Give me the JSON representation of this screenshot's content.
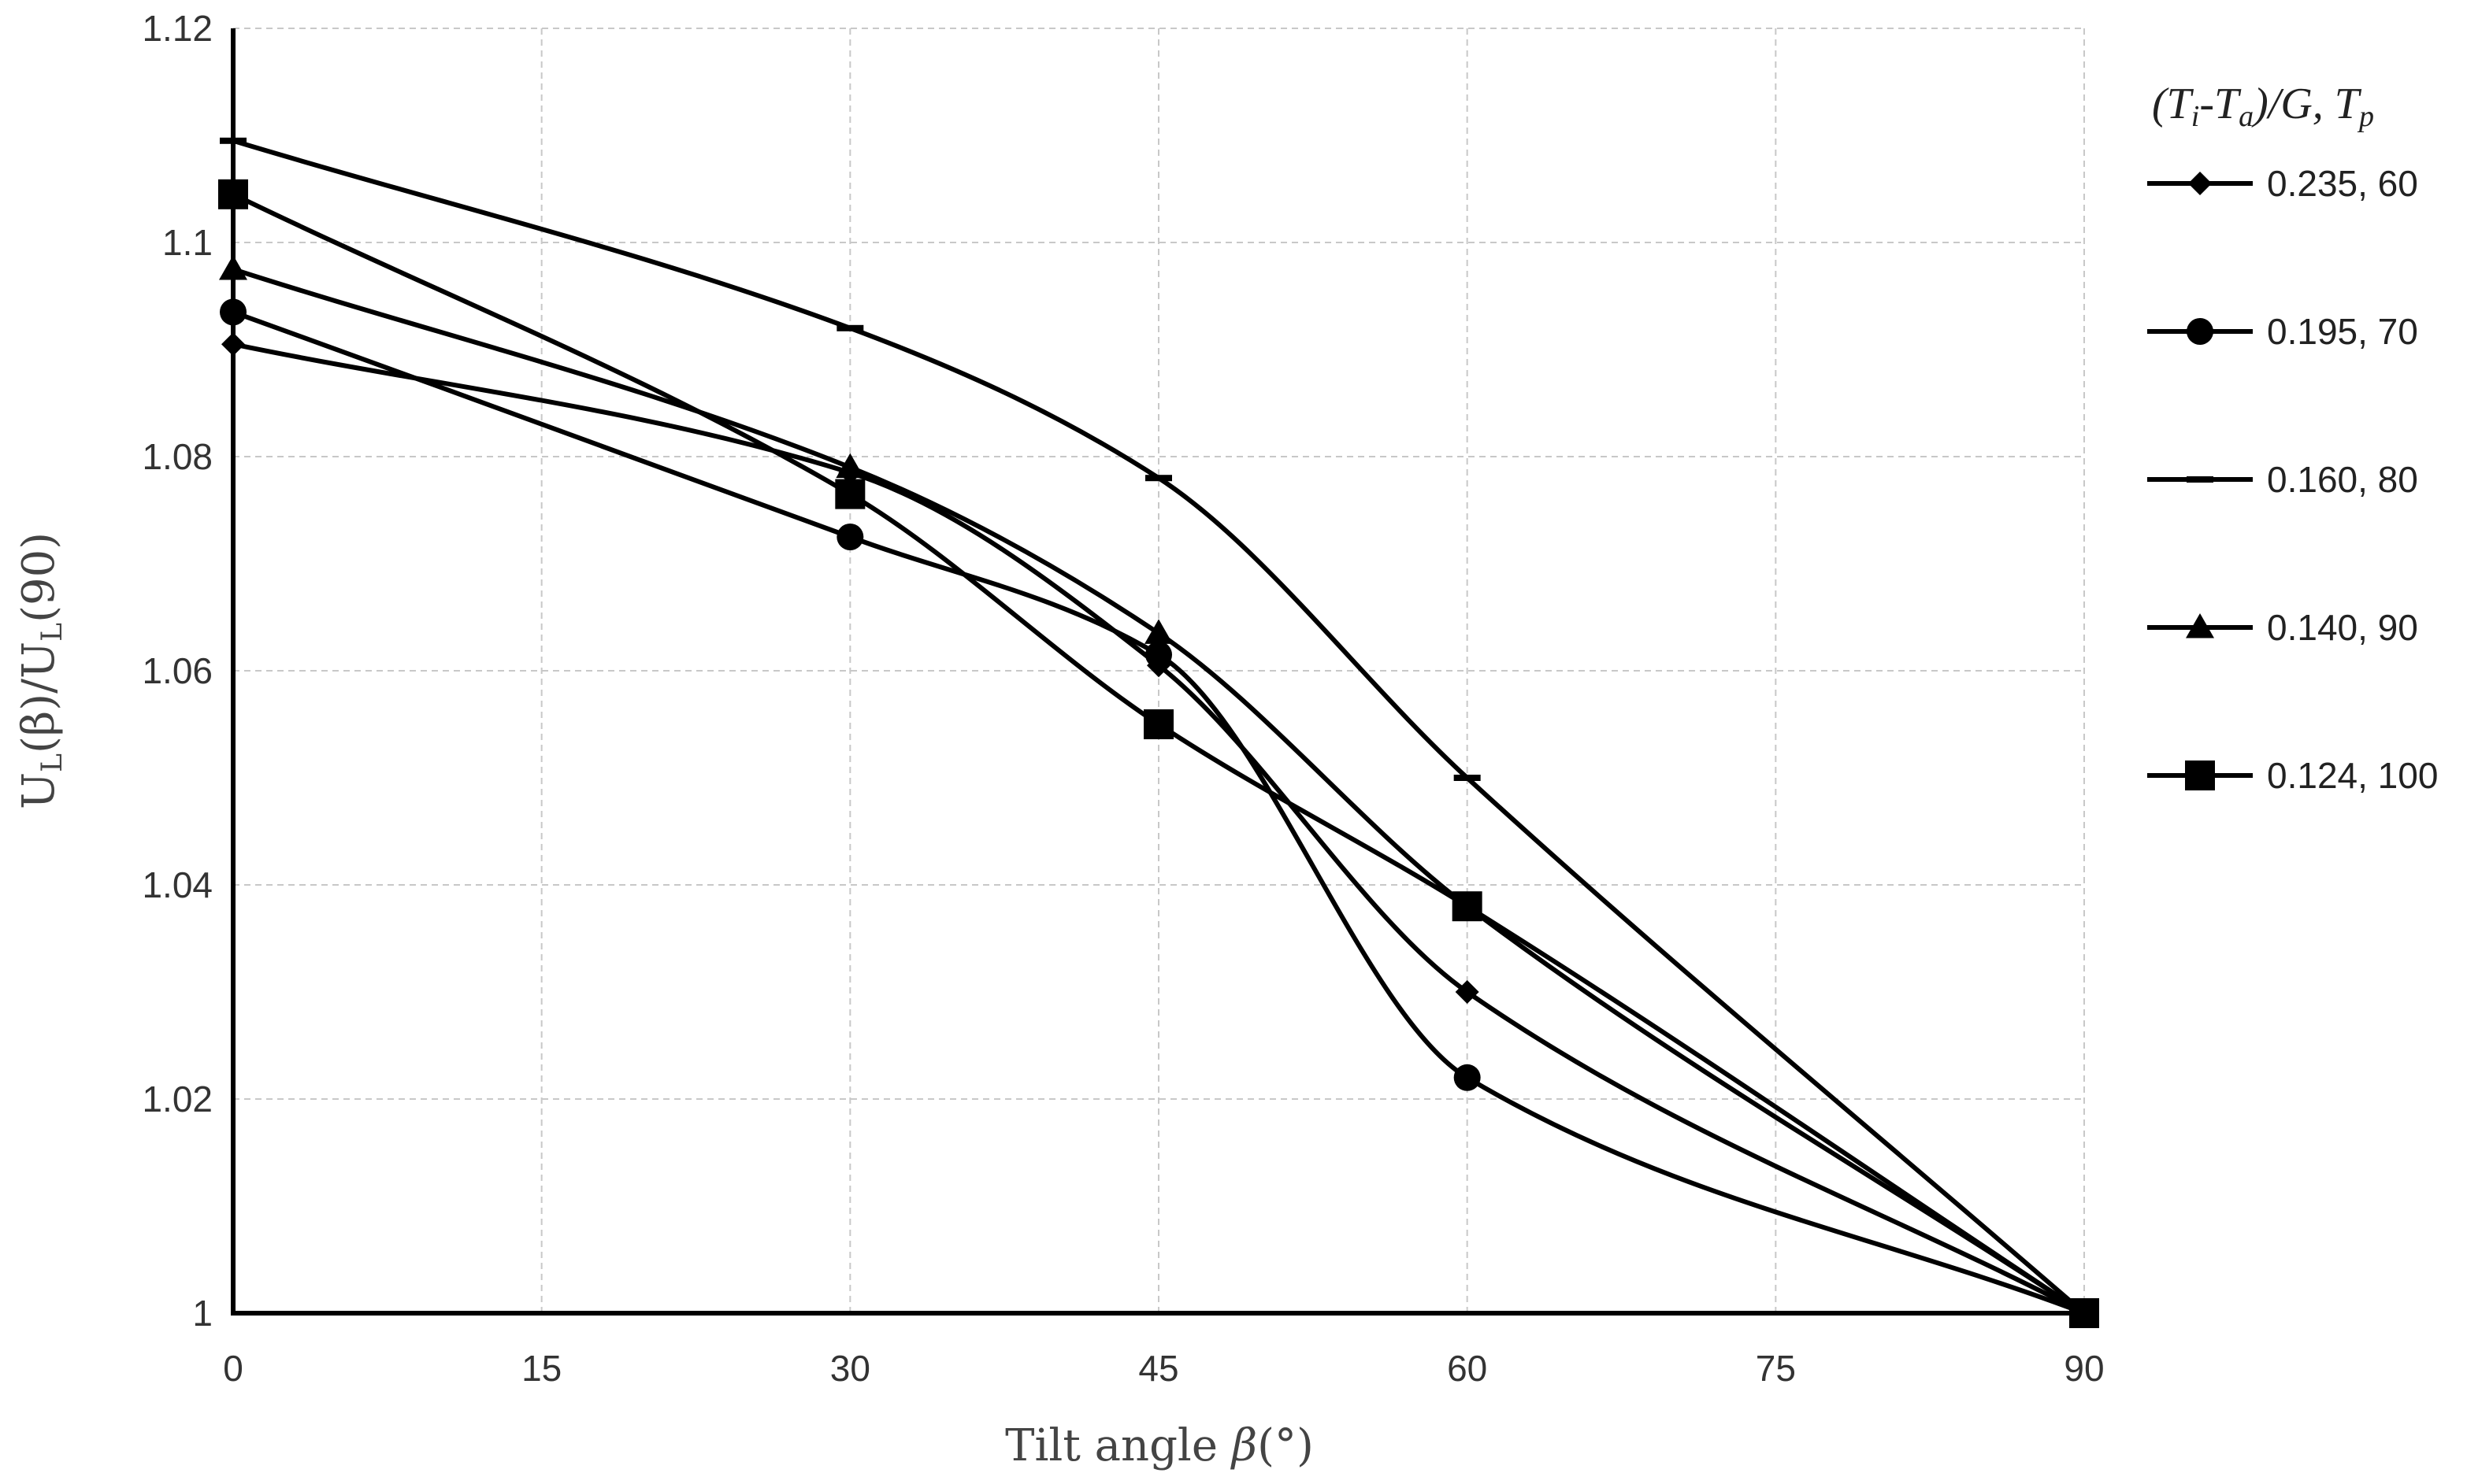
{
  "chart_data": {
    "type": "line",
    "title": "",
    "xlabel": "Tilt angle",
    "xlabel_symbol": "β",
    "xlabel_unit": "(°)",
    "ylabel": {
      "main1": "U",
      "sub1": "L",
      "mid": "(β)/U",
      "sub2": "L",
      "end": "(90)"
    },
    "legend_title": {
      "p1": "(T",
      "s1": "i",
      "p2": "-T",
      "s2": "a",
      "p3": ")/G, T",
      "s3": "p"
    },
    "legend_position": "right",
    "grid": true,
    "xlim": [
      0,
      90
    ],
    "ylim": [
      1,
      1.12
    ],
    "x_ticks": [
      0,
      15,
      30,
      45,
      60,
      75,
      90
    ],
    "y_ticks": [
      1,
      1.02,
      1.04,
      1.06,
      1.08,
      1.1,
      1.12
    ],
    "x_tick_labels": [
      "0",
      "15",
      "30",
      "45",
      "60",
      "75",
      "90"
    ],
    "y_tick_labels": [
      "1",
      "1.02",
      "1.04",
      "1.06",
      "1.08",
      "1.1",
      "1.12"
    ],
    "x": [
      0,
      30,
      45,
      60,
      90
    ],
    "series": [
      {
        "name": "0.235, 60",
        "marker": "diamond",
        "values": [
          1.0905,
          1.0785,
          1.0605,
          1.03,
          1.0
        ]
      },
      {
        "name": "0.195, 70",
        "marker": "circle",
        "values": [
          1.0935,
          1.0725,
          1.0615,
          1.022,
          1.0
        ]
      },
      {
        "name": "0.160, 80",
        "marker": "dash",
        "values": [
          1.1095,
          1.092,
          1.078,
          1.05,
          1.0
        ]
      },
      {
        "name": "0.140, 90",
        "marker": "triangle",
        "values": [
          1.0975,
          1.079,
          1.0635,
          1.038,
          1.0
        ]
      },
      {
        "name": "0.124, 100",
        "marker": "square",
        "values": [
          1.1045,
          1.0765,
          1.055,
          1.038,
          1.0
        ]
      }
    ]
  }
}
